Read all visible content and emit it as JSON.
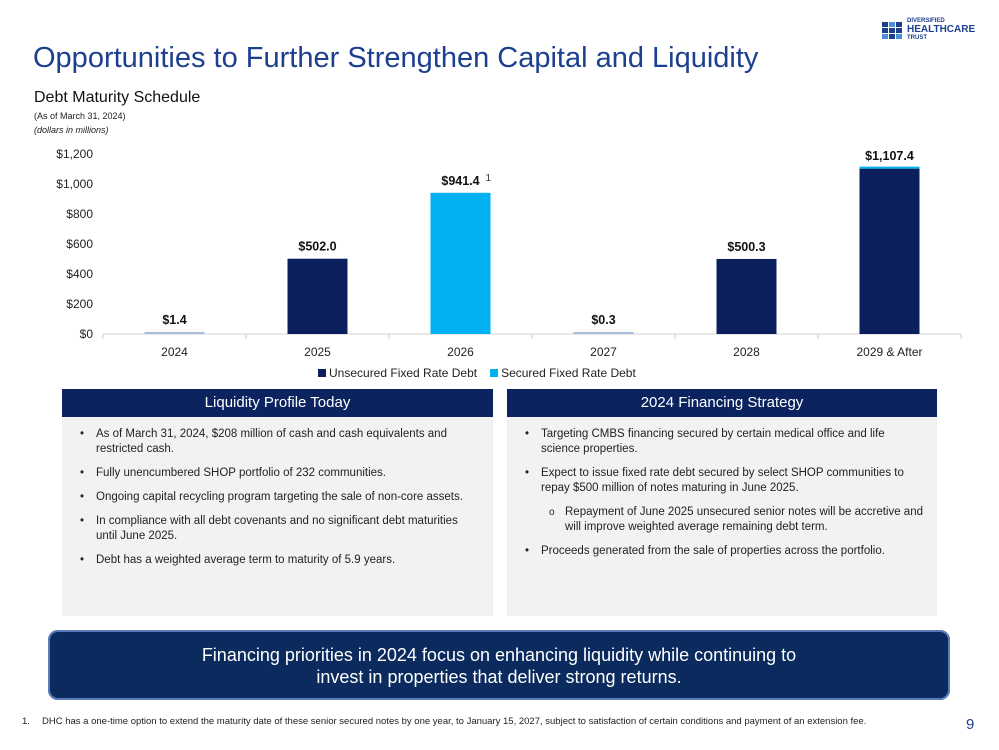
{
  "logo": {
    "line1": "DIVERSIFIED",
    "line2": "HEALTHCARE",
    "line3": "TRUST"
  },
  "title": "Opportunities to Further Strengthen Capital and Liquidity",
  "subtitle": "Debt Maturity Schedule",
  "as_of": "(As of March 31, 2024)",
  "units": "(dollars in millions)",
  "chart_data": {
    "type": "bar",
    "stacked": true,
    "title": "Debt Maturity Schedule",
    "categories": [
      "2024",
      "2025",
      "2026",
      "2027",
      "2028",
      "2029 & After"
    ],
    "series": [
      {
        "name": "Unsecured Fixed Rate Debt",
        "color": "#0b1f5c",
        "values": [
          1.4,
          502.0,
          0,
          0.3,
          500.3,
          1102.4
        ]
      },
      {
        "name": "Secured Fixed Rate Debt",
        "color": "#00b0f0",
        "values": [
          0,
          0,
          941.4,
          0,
          0,
          5.0
        ]
      }
    ],
    "totals": [
      1.4,
      502.0,
      941.4,
      0.3,
      500.3,
      1107.4
    ],
    "data_labels": [
      "$1.4",
      "$502.0",
      "$941.4",
      "$0.3",
      "$500.3",
      "$1,107.4"
    ],
    "annotation": {
      "category": "2026",
      "text": "1"
    },
    "yticks": [
      0,
      200,
      400,
      600,
      800,
      1000,
      1200
    ],
    "ytick_labels": [
      "$0",
      "$200",
      "$400",
      "$600",
      "$800",
      "$1,000",
      "$1,200"
    ],
    "ylim": [
      0,
      1200
    ],
    "xlabel": "",
    "ylabel": "",
    "grid": false,
    "legend": "bottom"
  },
  "left_panel": {
    "title": "Liquidity Profile Today",
    "items": [
      "As of March 31, 2024, $208 million of cash and cash equivalents and restricted cash.",
      "Fully unencumbered SHOP portfolio of 232 communities.",
      "Ongoing capital recycling program targeting the sale of non-core assets.",
      "In compliance with all debt covenants and no significant debt maturities until June 2025.",
      "Debt has a weighted average term to maturity of 5.9 years."
    ]
  },
  "right_panel": {
    "title": "2024 Financing Strategy",
    "items": [
      "Targeting CMBS financing secured by certain medical office and life science properties.",
      "Expect to issue fixed rate debt secured by select SHOP communities to repay $500 million of notes maturing in June 2025.",
      "Repayment of June 2025 unsecured senior notes will be accretive and will improve weighted average remaining debt term.",
      "Proceeds generated from the sale of properties across the portfolio."
    ]
  },
  "banner": {
    "line1": "Financing priorities in 2024 focus on enhancing liquidity while continuing to",
    "line2": "invest in properties that deliver strong returns."
  },
  "footnote": {
    "num": "1.",
    "text": "DHC has a one-time option to extend the maturity date of these senior secured notes by one year, to January 15, 2027, subject to satisfaction of certain conditions and payment of an extension fee."
  },
  "page_number": "9"
}
